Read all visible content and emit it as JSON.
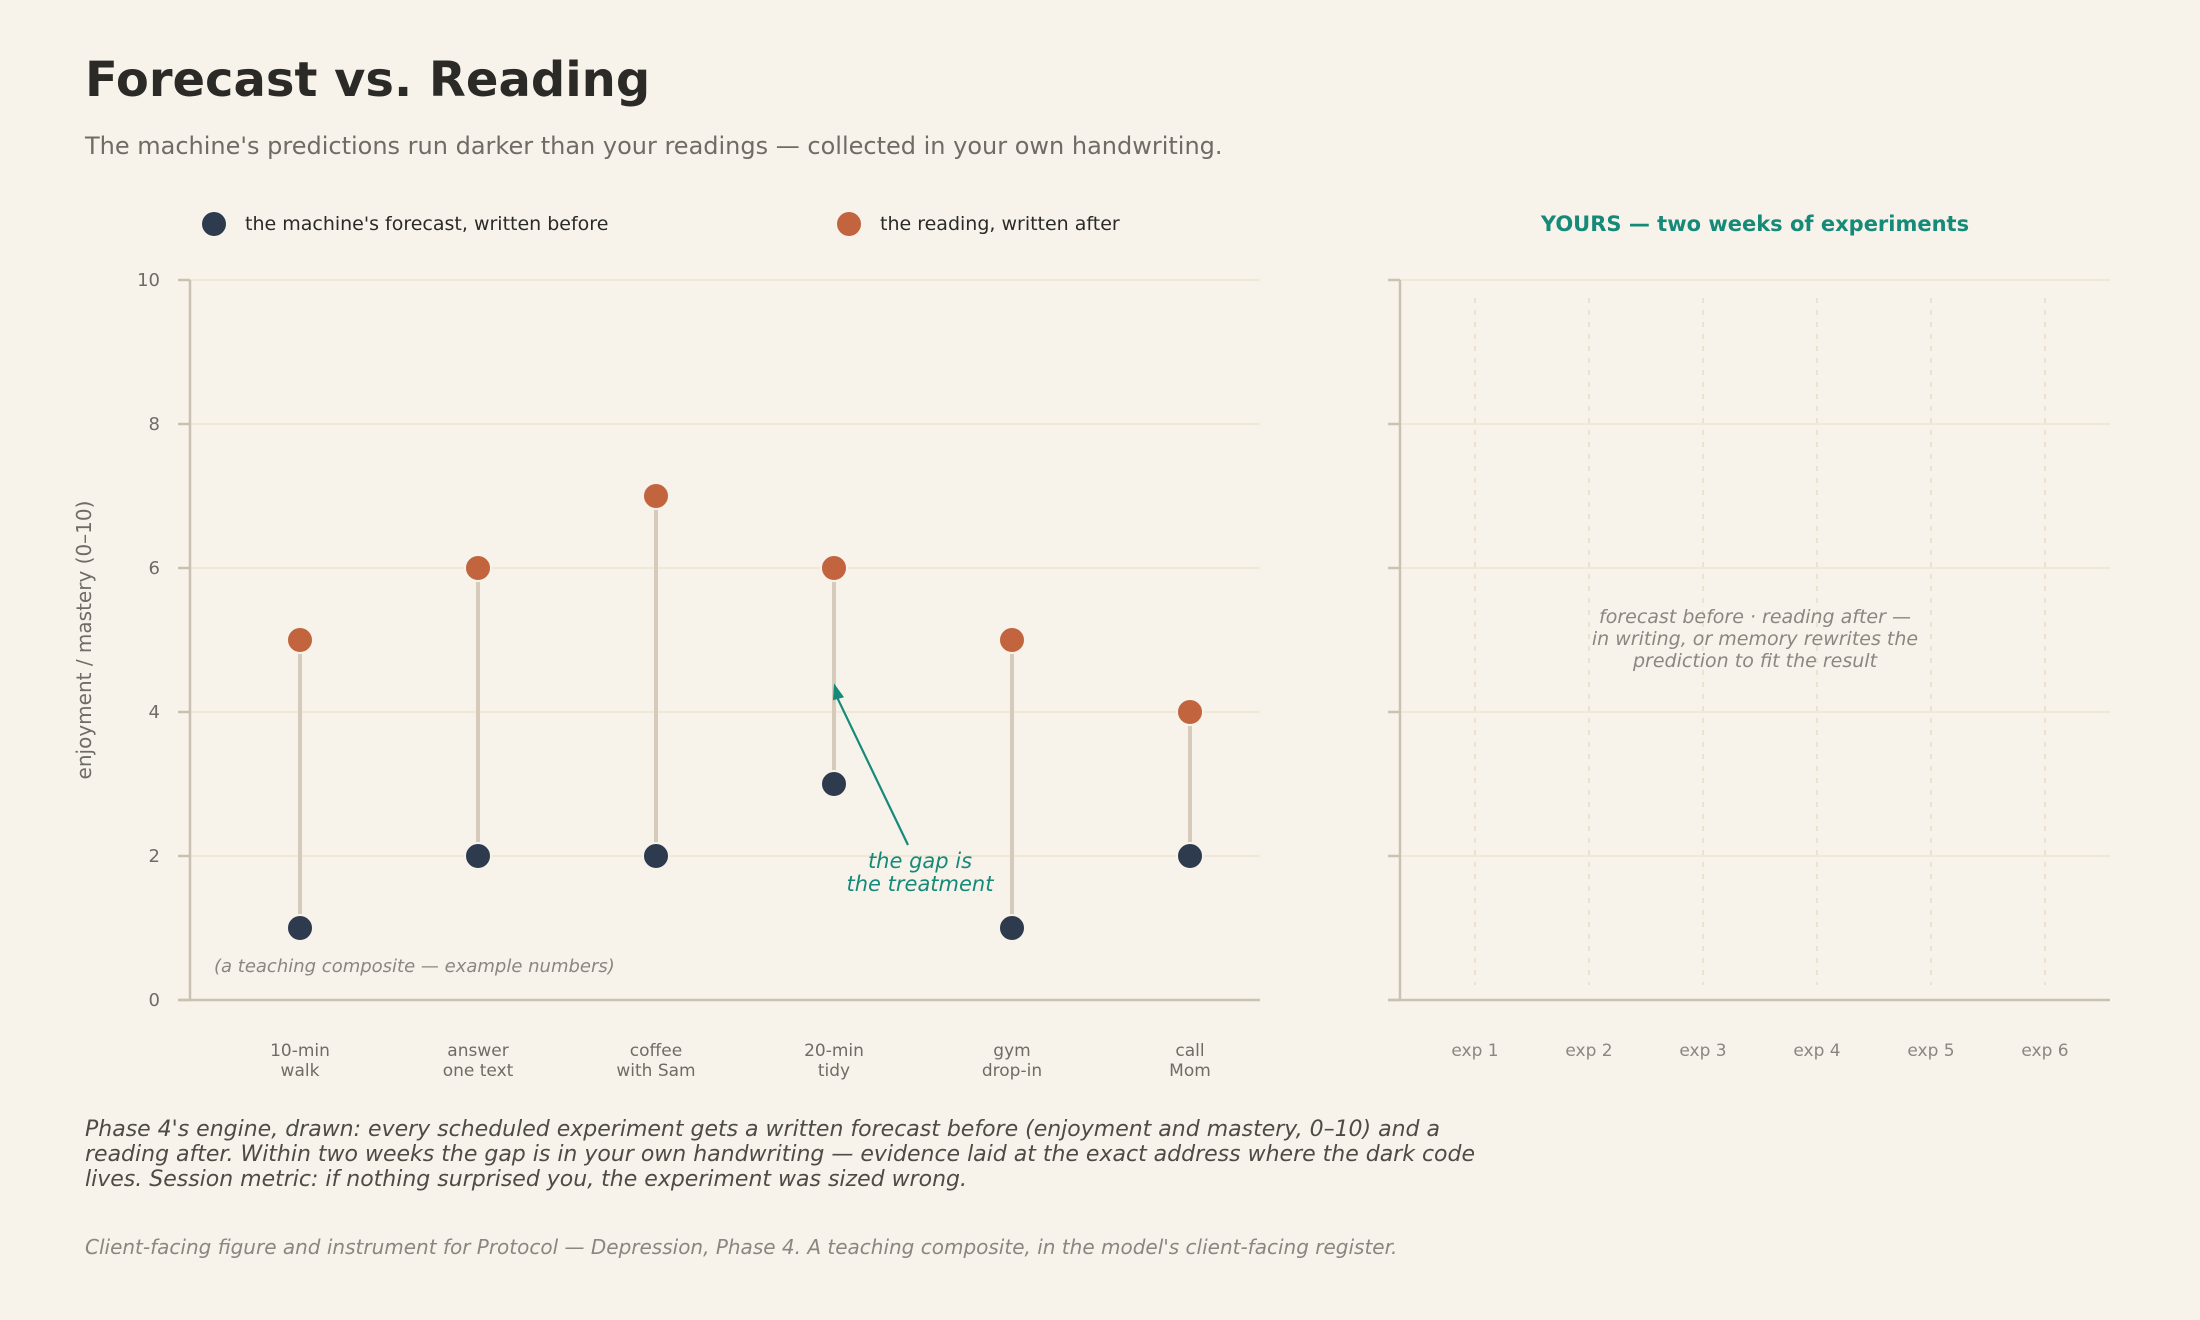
{
  "header": {
    "title": "Forecast vs. Reading",
    "subtitle": "The machine's predictions run darker than your readings — collected in your own handwriting."
  },
  "caption": "Phase 4's engine, drawn: every scheduled experiment gets a written forecast before (enjoyment and mastery, 0–10) and a reading after. Within two weeks the gap is in your own handwriting — evidence laid at the exact address where the dark code lives. Session metric: if nothing surprised you, the experiment was sized wrong.",
  "footnote": "Client-facing figure and instrument for Protocol — Depression, Phase 4. A teaching composite, in the model's client-facing register.",
  "colors": {
    "forecast": "#2e3a4d",
    "reading": "#c2643e",
    "accent": "#168a78",
    "connector": "#d6cbbb"
  },
  "chart_data": [
    {
      "type": "dumbbell",
      "ylabel": "enjoyment / mastery (0–10)",
      "ylim": [
        0,
        10
      ],
      "yticks": [
        0,
        2,
        4,
        6,
        8,
        10
      ],
      "grid": true,
      "legend_placement": "top",
      "categories": [
        [
          "10-min",
          "walk"
        ],
        [
          "answer",
          "one text"
        ],
        [
          "coffee",
          "with Sam"
        ],
        [
          "20-min",
          "tidy"
        ],
        [
          "gym",
          "drop-in"
        ],
        [
          "call",
          "Mom"
        ]
      ],
      "series": [
        {
          "name": "the machine's forecast, written before",
          "values": [
            1,
            2,
            2,
            3,
            1,
            2
          ]
        },
        {
          "name": "the reading, written after",
          "values": [
            5,
            6,
            7,
            6,
            5,
            4
          ]
        }
      ],
      "annotations": [
        {
          "text": [
            "the gap is",
            "the treatment"
          ],
          "category_index": 3,
          "y": 4.4
        }
      ],
      "note": "(a teaching composite — example numbers)"
    },
    {
      "type": "dumbbell",
      "title": "YOURS — two weeks of experiments",
      "ylim": [
        0,
        10
      ],
      "yticks": [
        0,
        2,
        4,
        6,
        8,
        10
      ],
      "grid": true,
      "categories": [
        "exp 1",
        "exp 2",
        "exp 3",
        "exp 4",
        "exp 5",
        "exp 6"
      ],
      "series": [],
      "note": [
        "forecast before · reading after —",
        "in writing, or memory rewrites the",
        "prediction to fit the result"
      ]
    }
  ]
}
